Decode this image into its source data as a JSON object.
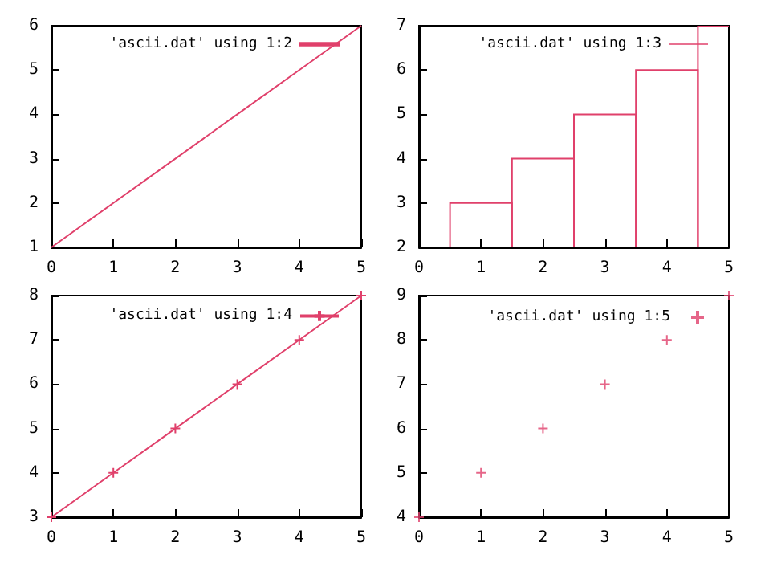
{
  "chart_data": [
    {
      "type": "line",
      "x": [
        0,
        1,
        2,
        3,
        4,
        5
      ],
      "xlim": [
        0,
        5
      ],
      "ylim": [
        1,
        6
      ],
      "xticks": [
        0,
        1,
        2,
        3,
        4,
        5
      ],
      "yticks": [
        1,
        2,
        3,
        4,
        5,
        6
      ],
      "legend": "top right",
      "series": [
        {
          "name": "'ascii.dat' using 1:2",
          "color": "#e0406b",
          "values": [
            1,
            2,
            3,
            4,
            5,
            6
          ]
        }
      ]
    },
    {
      "type": "bar",
      "x": [
        0,
        1,
        2,
        3,
        4,
        5
      ],
      "xlim": [
        0,
        5
      ],
      "ylim": [
        2,
        7
      ],
      "xticks": [
        0,
        1,
        2,
        3,
        4,
        5
      ],
      "yticks": [
        2,
        3,
        4,
        5,
        6,
        7
      ],
      "legend": "top right",
      "series": [
        {
          "name": "'ascii.dat' using 1:3",
          "color": "#e0406b",
          "values": [
            2,
            3,
            4,
            5,
            6,
            7
          ]
        }
      ]
    },
    {
      "type": "line",
      "x": [
        0,
        1,
        2,
        3,
        4,
        5
      ],
      "xlim": [
        0,
        5
      ],
      "ylim": [
        3,
        8
      ],
      "xticks": [
        0,
        1,
        2,
        3,
        4,
        5
      ],
      "yticks": [
        3,
        4,
        5,
        6,
        7,
        8
      ],
      "legend": "top right",
      "marker": "cross",
      "series": [
        {
          "name": "'ascii.dat' using 1:4",
          "color": "#e0406b",
          "values": [
            3,
            4,
            5,
            6,
            7,
            8
          ]
        }
      ]
    },
    {
      "type": "scatter",
      "x": [
        0,
        1,
        2,
        3,
        4,
        5
      ],
      "xlim": [
        0,
        5
      ],
      "ylim": [
        4,
        9
      ],
      "xticks": [
        0,
        1,
        2,
        3,
        4,
        5
      ],
      "yticks": [
        4,
        5,
        6,
        7,
        8,
        9
      ],
      "legend": "top right",
      "marker": "cross",
      "series": [
        {
          "name": "'ascii.dat' using 1:5",
          "color": "#e0406b",
          "values": [
            4,
            5,
            6,
            7,
            8,
            9
          ]
        }
      ]
    }
  ]
}
